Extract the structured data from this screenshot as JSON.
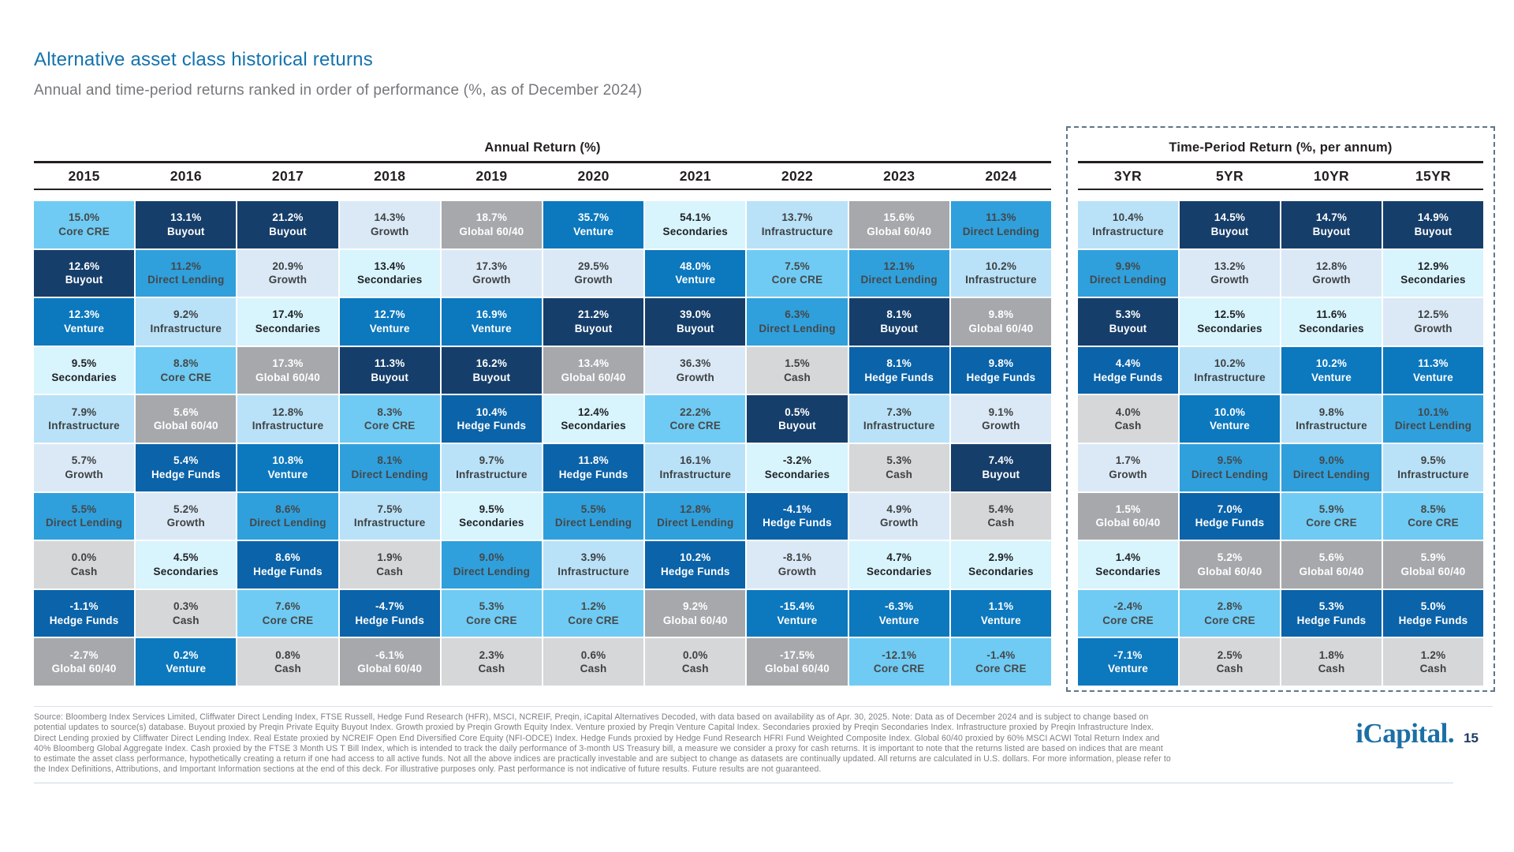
{
  "page": {
    "title": "Alternative asset class historical returns",
    "subtitle": "Annual and time-period returns ranked in order of performance (%, as of December 2024)",
    "logo_text": "iCapital",
    "logo_dot": ".",
    "page_number": "15"
  },
  "assets": {
    "Core CRE": {
      "bg": "#6FCBF3",
      "fg": "#45484A"
    },
    "Buyout": {
      "bg": "#163E6A",
      "fg": "#FFFFFF"
    },
    "Venture": {
      "bg": "#0C78BE",
      "fg": "#FFFFFF"
    },
    "Secondaries": {
      "bg": "#D8F4FD",
      "fg": "#1E2124"
    },
    "Infrastructure": {
      "bg": "#B9E2F8",
      "fg": "#3E4143"
    },
    "Growth": {
      "bg": "#DBE9F6",
      "fg": "#3E4143"
    },
    "Direct Lending": {
      "bg": "#2FA0DC",
      "fg": "#44484B"
    },
    "Cash": {
      "bg": "#D5D7D8",
      "fg": "#3E4143"
    },
    "Hedge Funds": {
      "bg": "#0B63A9",
      "fg": "#FFFFFF"
    },
    "Global 60/40": {
      "bg": "#A6A8AB",
      "fg": "#FFFFFF"
    }
  },
  "chart_data": {
    "type": "table",
    "title": "Alternative asset class historical returns",
    "subtitle": "Annual and time-period returns ranked in order of performance (%, as of December 2024)",
    "value_unit": "%",
    "groups": [
      {
        "header": "Annual Return (%)",
        "columns": [
          {
            "label": "2015",
            "cells": [
              {
                "value": 15.0,
                "asset": "Core CRE"
              },
              {
                "value": 12.6,
                "asset": "Buyout"
              },
              {
                "value": 12.3,
                "asset": "Venture"
              },
              {
                "value": 9.5,
                "asset": "Secondaries"
              },
              {
                "value": 7.9,
                "asset": "Infrastructure"
              },
              {
                "value": 5.7,
                "asset": "Growth"
              },
              {
                "value": 5.5,
                "asset": "Direct Lending"
              },
              {
                "value": 0.0,
                "asset": "Cash"
              },
              {
                "value": -1.1,
                "asset": "Hedge Funds"
              },
              {
                "value": -2.7,
                "asset": "Global 60/40"
              }
            ]
          },
          {
            "label": "2016",
            "cells": [
              {
                "value": 13.1,
                "asset": "Buyout"
              },
              {
                "value": 11.2,
                "asset": "Direct Lending"
              },
              {
                "value": 9.2,
                "asset": "Infrastructure"
              },
              {
                "value": 8.8,
                "asset": "Core CRE"
              },
              {
                "value": 5.6,
                "asset": "Global 60/40"
              },
              {
                "value": 5.4,
                "asset": "Hedge Funds"
              },
              {
                "value": 5.2,
                "asset": "Growth"
              },
              {
                "value": 4.5,
                "asset": "Secondaries"
              },
              {
                "value": 0.3,
                "asset": "Cash"
              },
              {
                "value": 0.2,
                "asset": "Venture"
              }
            ]
          },
          {
            "label": "2017",
            "cells": [
              {
                "value": 21.2,
                "asset": "Buyout"
              },
              {
                "value": 20.9,
                "asset": "Growth"
              },
              {
                "value": 17.4,
                "asset": "Secondaries"
              },
              {
                "value": 17.3,
                "asset": "Global 60/40"
              },
              {
                "value": 12.8,
                "asset": "Infrastructure"
              },
              {
                "value": 10.8,
                "asset": "Venture"
              },
              {
                "value": 8.6,
                "asset": "Direct Lending"
              },
              {
                "value": 8.6,
                "asset": "Hedge Funds"
              },
              {
                "value": 7.6,
                "asset": "Core CRE"
              },
              {
                "value": 0.8,
                "asset": "Cash"
              }
            ]
          },
          {
            "label": "2018",
            "cells": [
              {
                "value": 14.3,
                "asset": "Growth"
              },
              {
                "value": 13.4,
                "asset": "Secondaries"
              },
              {
                "value": 12.7,
                "asset": "Venture"
              },
              {
                "value": 11.3,
                "asset": "Buyout"
              },
              {
                "value": 8.3,
                "asset": "Core CRE"
              },
              {
                "value": 8.1,
                "asset": "Direct Lending"
              },
              {
                "value": 7.5,
                "asset": "Infrastructure"
              },
              {
                "value": 1.9,
                "asset": "Cash"
              },
              {
                "value": -4.7,
                "asset": "Hedge Funds"
              },
              {
                "value": -6.1,
                "asset": "Global 60/40"
              }
            ]
          },
          {
            "label": "2019",
            "cells": [
              {
                "value": 18.7,
                "asset": "Global 60/40"
              },
              {
                "value": 17.3,
                "asset": "Growth"
              },
              {
                "value": 16.9,
                "asset": "Venture"
              },
              {
                "value": 16.2,
                "asset": "Buyout"
              },
              {
                "value": 10.4,
                "asset": "Hedge Funds"
              },
              {
                "value": 9.7,
                "asset": "Infrastructure"
              },
              {
                "value": 9.5,
                "asset": "Secondaries"
              },
              {
                "value": 9.0,
                "asset": "Direct Lending"
              },
              {
                "value": 5.3,
                "asset": "Core CRE"
              },
              {
                "value": 2.3,
                "asset": "Cash"
              }
            ]
          },
          {
            "label": "2020",
            "cells": [
              {
                "value": 35.7,
                "asset": "Venture"
              },
              {
                "value": 29.5,
                "asset": "Growth"
              },
              {
                "value": 21.2,
                "asset": "Buyout"
              },
              {
                "value": 13.4,
                "asset": "Global 60/40"
              },
              {
                "value": 12.4,
                "asset": "Secondaries"
              },
              {
                "value": 11.8,
                "asset": "Hedge Funds"
              },
              {
                "value": 5.5,
                "asset": "Direct Lending"
              },
              {
                "value": 3.9,
                "asset": "Infrastructure"
              },
              {
                "value": 1.2,
                "asset": "Core CRE"
              },
              {
                "value": 0.6,
                "asset": "Cash"
              }
            ]
          },
          {
            "label": "2021",
            "cells": [
              {
                "value": 54.1,
                "asset": "Secondaries"
              },
              {
                "value": 48.0,
                "asset": "Venture"
              },
              {
                "value": 39.0,
                "asset": "Buyout"
              },
              {
                "value": 36.3,
                "asset": "Growth"
              },
              {
                "value": 22.2,
                "asset": "Core CRE"
              },
              {
                "value": 16.1,
                "asset": "Infrastructure"
              },
              {
                "value": 12.8,
                "asset": "Direct Lending"
              },
              {
                "value": 10.2,
                "asset": "Hedge Funds"
              },
              {
                "value": 9.2,
                "asset": "Global 60/40"
              },
              {
                "value": 0.0,
                "asset": "Cash"
              }
            ]
          },
          {
            "label": "2022",
            "cells": [
              {
                "value": 13.7,
                "asset": "Infrastructure"
              },
              {
                "value": 7.5,
                "asset": "Core CRE"
              },
              {
                "value": 6.3,
                "asset": "Direct Lending"
              },
              {
                "value": 1.5,
                "asset": "Cash"
              },
              {
                "value": 0.5,
                "asset": "Buyout"
              },
              {
                "value": -3.2,
                "asset": "Secondaries"
              },
              {
                "value": -4.1,
                "asset": "Hedge Funds"
              },
              {
                "value": -8.1,
                "asset": "Growth"
              },
              {
                "value": -15.4,
                "asset": "Venture"
              },
              {
                "value": -17.5,
                "asset": "Global 60/40"
              }
            ]
          },
          {
            "label": "2023",
            "cells": [
              {
                "value": 15.6,
                "asset": "Global 60/40"
              },
              {
                "value": 12.1,
                "asset": "Direct Lending"
              },
              {
                "value": 8.1,
                "asset": "Buyout"
              },
              {
                "value": 8.1,
                "asset": "Hedge Funds"
              },
              {
                "value": 7.3,
                "asset": "Infrastructure"
              },
              {
                "value": 5.3,
                "asset": "Cash"
              },
              {
                "value": 4.9,
                "asset": "Growth"
              },
              {
                "value": 4.7,
                "asset": "Secondaries"
              },
              {
                "value": -6.3,
                "asset": "Venture"
              },
              {
                "value": -12.1,
                "asset": "Core CRE"
              }
            ]
          },
          {
            "label": "2024",
            "cells": [
              {
                "value": 11.3,
                "asset": "Direct Lending"
              },
              {
                "value": 10.2,
                "asset": "Infrastructure"
              },
              {
                "value": 9.8,
                "asset": "Global 60/40"
              },
              {
                "value": 9.8,
                "asset": "Hedge Funds"
              },
              {
                "value": 9.1,
                "asset": "Growth"
              },
              {
                "value": 7.4,
                "asset": "Buyout"
              },
              {
                "value": 5.4,
                "asset": "Cash"
              },
              {
                "value": 2.9,
                "asset": "Secondaries"
              },
              {
                "value": 1.1,
                "asset": "Venture"
              },
              {
                "value": -1.4,
                "asset": "Core CRE"
              }
            ]
          }
        ]
      },
      {
        "header": "Time-Period Return (%, per annum)",
        "columns": [
          {
            "label": "3YR",
            "cells": [
              {
                "value": 10.4,
                "asset": "Infrastructure"
              },
              {
                "value": 9.9,
                "asset": "Direct Lending"
              },
              {
                "value": 5.3,
                "asset": "Buyout"
              },
              {
                "value": 4.4,
                "asset": "Hedge Funds"
              },
              {
                "value": 4.0,
                "asset": "Cash"
              },
              {
                "value": 1.7,
                "asset": "Growth"
              },
              {
                "value": 1.5,
                "asset": "Global 60/40"
              },
              {
                "value": 1.4,
                "asset": "Secondaries"
              },
              {
                "value": -2.4,
                "asset": "Core CRE"
              },
              {
                "value": -7.1,
                "asset": "Venture"
              }
            ]
          },
          {
            "label": "5YR",
            "cells": [
              {
                "value": 14.5,
                "asset": "Buyout"
              },
              {
                "value": 13.2,
                "asset": "Growth"
              },
              {
                "value": 12.5,
                "asset": "Secondaries"
              },
              {
                "value": 10.2,
                "asset": "Infrastructure"
              },
              {
                "value": 10.0,
                "asset": "Venture"
              },
              {
                "value": 9.5,
                "asset": "Direct Lending"
              },
              {
                "value": 7.0,
                "asset": "Hedge Funds"
              },
              {
                "value": 5.2,
                "asset": "Global 60/40"
              },
              {
                "value": 2.8,
                "asset": "Core CRE"
              },
              {
                "value": 2.5,
                "asset": "Cash"
              }
            ]
          },
          {
            "label": "10YR",
            "cells": [
              {
                "value": 14.7,
                "asset": "Buyout"
              },
              {
                "value": 12.8,
                "asset": "Growth"
              },
              {
                "value": 11.6,
                "asset": "Secondaries"
              },
              {
                "value": 10.2,
                "asset": "Venture"
              },
              {
                "value": 9.8,
                "asset": "Infrastructure"
              },
              {
                "value": 9.0,
                "asset": "Direct Lending"
              },
              {
                "value": 5.9,
                "asset": "Core CRE"
              },
              {
                "value": 5.6,
                "asset": "Global 60/40"
              },
              {
                "value": 5.3,
                "asset": "Hedge Funds"
              },
              {
                "value": 1.8,
                "asset": "Cash"
              }
            ]
          },
          {
            "label": "15YR",
            "cells": [
              {
                "value": 14.9,
                "asset": "Buyout"
              },
              {
                "value": 12.9,
                "asset": "Secondaries"
              },
              {
                "value": 12.5,
                "asset": "Growth"
              },
              {
                "value": 11.3,
                "asset": "Venture"
              },
              {
                "value": 10.1,
                "asset": "Direct Lending"
              },
              {
                "value": 9.5,
                "asset": "Infrastructure"
              },
              {
                "value": 8.5,
                "asset": "Core CRE"
              },
              {
                "value": 5.9,
                "asset": "Global 60/40"
              },
              {
                "value": 5.0,
                "asset": "Hedge Funds"
              },
              {
                "value": 1.2,
                "asset": "Cash"
              }
            ]
          }
        ]
      }
    ]
  },
  "footer": {
    "lines": [
      "Source: Bloomberg Index Services Limited, Cliffwater Direct Lending Index, FTSE Russell, Hedge Fund Research (HFR), MSCI, NCREIF, Preqin, iCapital Alternatives Decoded, with data based on availability as of Apr. 30, 2025. Note: Data as of December 2024 and is subject to change based on",
      "potential updates to source(s) database. Buyout proxied by Preqin Private Equity Buyout Index. Growth proxied by Preqin Growth Equity Index. Venture proxied by Preqin Venture Capital Index. Secondaries proxied by Preqin Secondaries Index. Infrastructure proxied by Preqin Infrastructure Index.",
      "Direct Lending proxied by Cliffwater Direct Lending Index. Real Estate proxied by NCREIF Open End Diversified Core Equity (NFI-ODCE) Index. Hedge Funds proxied by Hedge Fund Research HFRI Fund Weighted Composite Index. Global 60/40 proxied by 60% MSCI ACWI Total Return Index and",
      "40% Bloomberg Global Aggregate Index. Cash proxied by the FTSE 3 Month US T Bill Index, which is intended to track the daily performance of 3-month US Treasury bill, a measure we consider a proxy for cash returns. It is important to note that the returns listed are based on indices that are meant",
      "to estimate the asset class performance, hypothetically creating a return if one had access to all active funds. Not all the above indices are practically investable and are subject to change as datasets are continually updated. All returns are calculated in U.S. dollars. For more information, please refer to",
      "the Index Definitions, Attributions, and Important Information sections at the end of this deck. For illustrative purposes only. Past performance is not indicative of future results. Future results are not guaranteed."
    ]
  }
}
